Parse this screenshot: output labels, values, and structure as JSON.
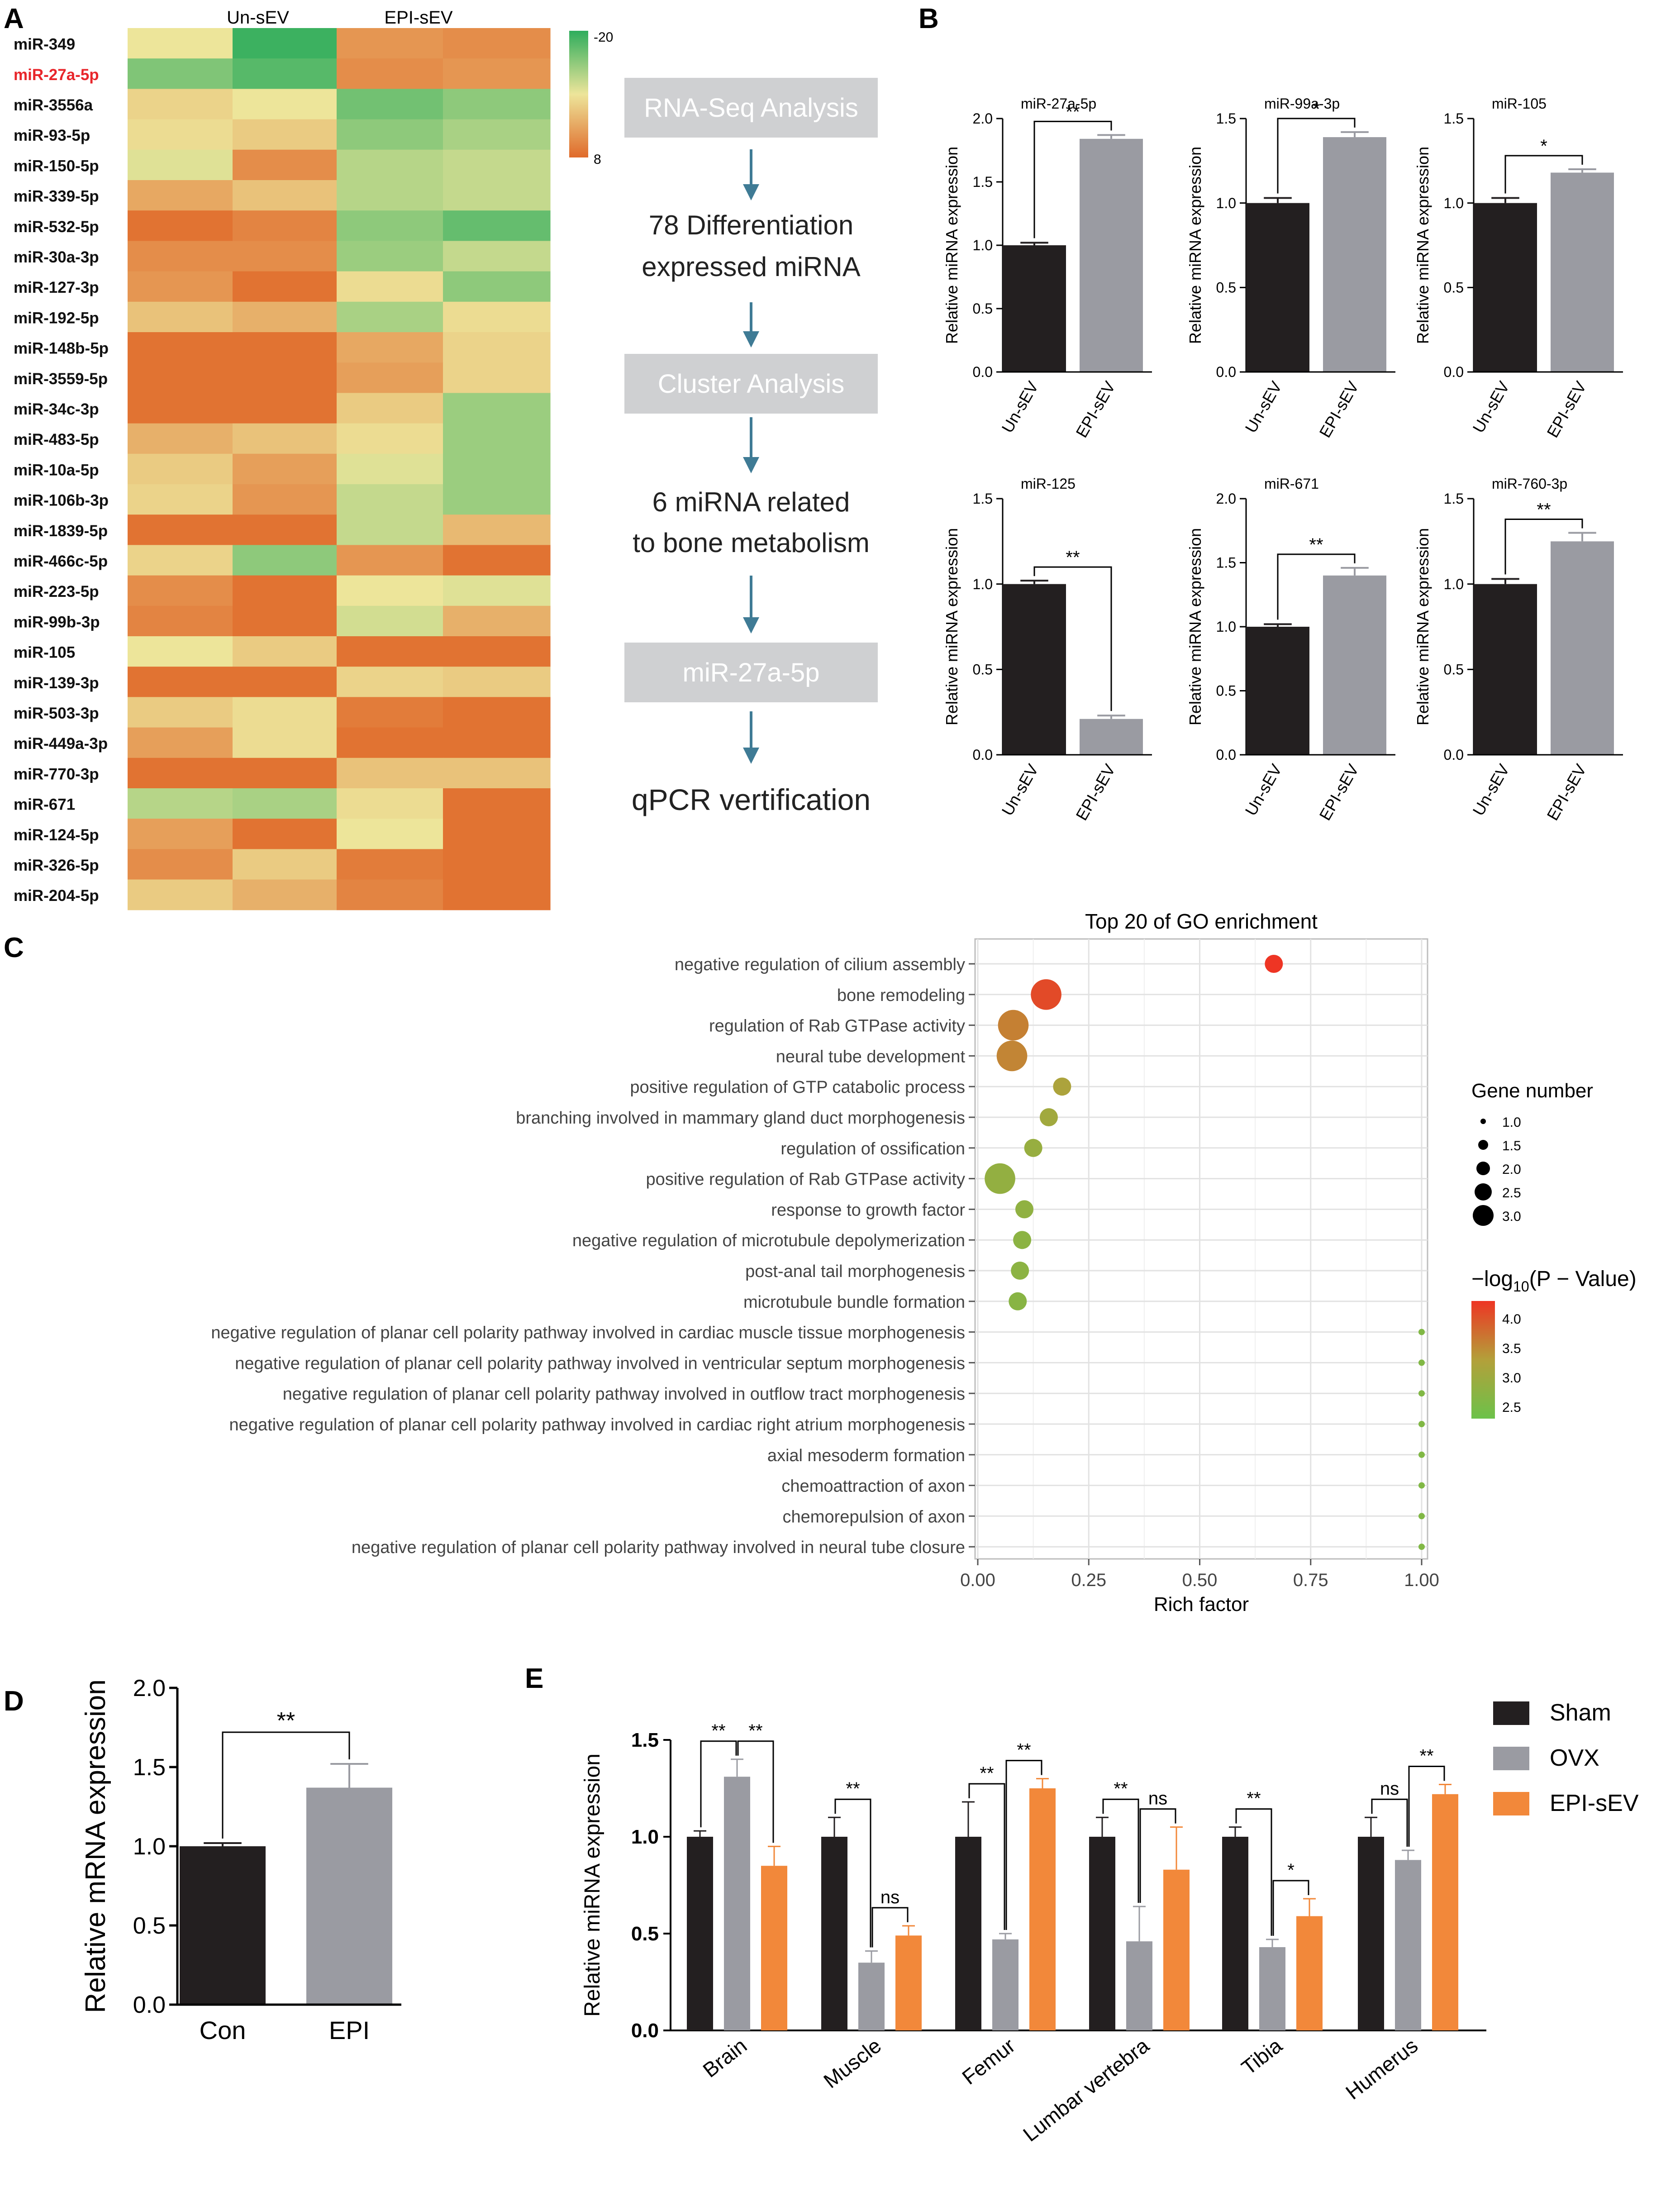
{
  "panel_labels": {
    "a": "A",
    "b": "B",
    "c": "C",
    "d": "D",
    "e": "E"
  },
  "heatmap": {
    "columns": [
      "Un-sEV",
      "EPI-sEV"
    ],
    "colorbar": {
      "top_label": "-20",
      "bottom_label": "8",
      "min": -20,
      "max": 8,
      "colors": [
        "#2ead5c",
        "#ede59a",
        "#e06a2a"
      ]
    },
    "highlight_color": "#e8262b",
    "highlight_row": "miR-27a-5p",
    "rows": [
      {
        "name": "miR-349",
        "values": [
          -6,
          -19,
          3,
          4
        ]
      },
      {
        "name": "miR-27a-5p",
        "values": [
          -14,
          -17,
          4,
          3
        ]
      },
      {
        "name": "miR-3556a",
        "values": [
          -4,
          -6,
          -15,
          -13
        ]
      },
      {
        "name": "miR-93-5p",
        "values": [
          -5,
          -3,
          -13,
          -11
        ]
      },
      {
        "name": "miR-150-5p",
        "values": [
          -7,
          4,
          -10,
          -9
        ]
      },
      {
        "name": "miR-339-5p",
        "values": [
          1,
          -2,
          -10,
          -9
        ]
      },
      {
        "name": "miR-532-5p",
        "values": [
          7,
          5,
          -13,
          -16
        ]
      },
      {
        "name": "miR-30a-3p",
        "values": [
          4,
          4,
          -12,
          -9
        ]
      },
      {
        "name": "miR-127-3p",
        "values": [
          3,
          7,
          -5,
          -13
        ]
      },
      {
        "name": "miR-192-5p",
        "values": [
          -2,
          0,
          -11,
          -5
        ]
      },
      {
        "name": "miR-148b-5p",
        "values": [
          7,
          7,
          1,
          -4
        ]
      },
      {
        "name": "miR-3559-5p",
        "values": [
          7,
          7,
          2,
          -4
        ]
      },
      {
        "name": "miR-34c-3p",
        "values": [
          7,
          7,
          -3,
          -12
        ]
      },
      {
        "name": "miR-483-5p",
        "values": [
          0,
          -2,
          -5,
          -12
        ]
      },
      {
        "name": "miR-10a-5p",
        "values": [
          -3,
          2,
          -7,
          -12
        ]
      },
      {
        "name": "miR-106b-3p",
        "values": [
          -4,
          3,
          -9,
          -12
        ]
      },
      {
        "name": "miR-1839-5p",
        "values": [
          7,
          7,
          -9,
          -1
        ]
      },
      {
        "name": "miR-466c-5p",
        "values": [
          -4,
          -13,
          3,
          7
        ]
      },
      {
        "name": "miR-223-5p",
        "values": [
          4,
          7,
          -6,
          -7
        ]
      },
      {
        "name": "miR-99b-3p",
        "values": [
          5,
          7,
          -8,
          0
        ]
      },
      {
        "name": "miR-105",
        "values": [
          -6,
          -3,
          7,
          7
        ]
      },
      {
        "name": "miR-139-3p",
        "values": [
          7,
          7,
          -4,
          -3
        ]
      },
      {
        "name": "miR-503-3p",
        "values": [
          -3,
          -5,
          6,
          7
        ]
      },
      {
        "name": "miR-449a-3p",
        "values": [
          2,
          -5,
          7,
          7
        ]
      },
      {
        "name": "miR-770-3p",
        "values": [
          7,
          7,
          -2,
          -2
        ]
      },
      {
        "name": "miR-671",
        "values": [
          -10,
          -11,
          -5,
          7
        ]
      },
      {
        "name": "miR-124-5p",
        "values": [
          2,
          7,
          -6,
          7
        ]
      },
      {
        "name": "miR-326-5p",
        "values": [
          4,
          -3,
          6,
          7
        ]
      },
      {
        "name": "miR-204-5p",
        "values": [
          -3,
          0,
          5,
          7
        ]
      }
    ]
  },
  "flow": {
    "steps": [
      "RNA-Seq Analysis",
      "78 Differentiation",
      "expressed miRNA",
      "Cluster Analysis",
      "6 miRNA related",
      "to bone metabolism",
      "miR-27a-5p",
      "qPCR vertification"
    ]
  },
  "chart_data": [
    {
      "type": "bar",
      "panel": "B",
      "title": "miR-27a-5p",
      "categories": [
        "Un-sEV",
        "EPI-sEV"
      ],
      "values": [
        1.0,
        1.84
      ],
      "errors": [
        0.02,
        0.03
      ],
      "ylabel": "Relative miRNA expression",
      "ylim": [
        0,
        2.0
      ],
      "yticks": [
        "0.0",
        "0.5",
        "1.0",
        "1.5",
        "2.0"
      ],
      "significance": "**"
    },
    {
      "type": "bar",
      "panel": "B",
      "title": "miR-99a-3p",
      "categories": [
        "Un-sEV",
        "EPI-sEV"
      ],
      "values": [
        1.0,
        1.39
      ],
      "errors": [
        0.03,
        0.03
      ],
      "ylabel": "Relative miRNA expression",
      "ylim": [
        0,
        1.5
      ],
      "yticks": [
        "0.0",
        "0.5",
        "1.0",
        "1.5"
      ],
      "significance": "*"
    },
    {
      "type": "bar",
      "panel": "B",
      "title": "miR-105",
      "categories": [
        "Un-sEV",
        "EPI-sEV"
      ],
      "values": [
        1.0,
        1.18
      ],
      "errors": [
        0.03,
        0.02
      ],
      "ylabel": "Relative miRNA expression",
      "ylim": [
        0,
        1.5
      ],
      "yticks": [
        "0.0",
        "0.5",
        "1.0",
        "1.5"
      ],
      "significance": "*"
    },
    {
      "type": "bar",
      "panel": "B",
      "title": "miR-125",
      "categories": [
        "Un-sEV",
        "EPI-sEV"
      ],
      "values": [
        1.0,
        0.21
      ],
      "errors": [
        0.02,
        0.02
      ],
      "ylabel": "Relative miRNA expression",
      "ylim": [
        0,
        1.5
      ],
      "yticks": [
        "0.0",
        "0.5",
        "1.0",
        "1.5"
      ],
      "significance": "**"
    },
    {
      "type": "bar",
      "panel": "B",
      "title": "miR-671",
      "categories": [
        "Un-sEV",
        "EPI-sEV"
      ],
      "values": [
        1.0,
        1.4
      ],
      "errors": [
        0.02,
        0.06
      ],
      "ylabel": "Relative miRNA expression",
      "ylim": [
        0,
        2.0
      ],
      "yticks": [
        "0.0",
        "0.5",
        "1.0",
        "1.5",
        "2.0"
      ],
      "significance": "**"
    },
    {
      "type": "bar",
      "panel": "B",
      "title": "miR-760-3p",
      "categories": [
        "Un-sEV",
        "EPI-sEV"
      ],
      "values": [
        1.0,
        1.25
      ],
      "errors": [
        0.03,
        0.05
      ],
      "ylabel": "Relative miRNA expression",
      "ylim": [
        0,
        1.5
      ],
      "yticks": [
        "0.0",
        "0.5",
        "1.0",
        "1.5"
      ],
      "significance": "**"
    },
    {
      "type": "scatter",
      "panel": "C",
      "title": "Top 20 of GO enrichment",
      "xlabel": "Rich factor",
      "xlim": [
        0,
        1.05
      ],
      "xticks": [
        "0.00",
        "0.25",
        "0.50",
        "0.75",
        "1.00"
      ],
      "size_legend": {
        "title": "Gene number",
        "values": [
          "1.0",
          "1.5",
          "2.0",
          "2.5",
          "3.0"
        ]
      },
      "color_legend": {
        "title_main": "−log",
        "title_sub": "10",
        "title_rest": "(P − Value)",
        "ticks": [
          "4.0",
          "3.5",
          "3.0",
          "2.5"
        ],
        "range": [
          2.3,
          4.3
        ]
      },
      "terms": [
        {
          "term": "negative regulation of cilium assembly",
          "rich": 0.667,
          "genes": 1,
          "neglog10p": 4.3
        },
        {
          "term": "bone remodeling",
          "rich": 0.154,
          "genes": 2,
          "neglog10p": 4.1
        },
        {
          "term": "regulation of Rab GTPase activity",
          "rich": 0.08,
          "genes": 2,
          "neglog10p": 3.6
        },
        {
          "term": "neural tube development",
          "rich": 0.077,
          "genes": 2,
          "neglog10p": 3.55
        },
        {
          "term": "positive regulation of GTP catabolic process",
          "rich": 0.19,
          "genes": 1,
          "neglog10p": 3.2
        },
        {
          "term": "branching involved in mammary gland duct morphogenesis",
          "rich": 0.16,
          "genes": 1,
          "neglog10p": 3.05
        },
        {
          "term": "regulation of ossification",
          "rich": 0.125,
          "genes": 1,
          "neglog10p": 2.9
        },
        {
          "term": "positive regulation of Rab GTPase activity",
          "rich": 0.05,
          "genes": 2,
          "neglog10p": 2.85
        },
        {
          "term": "response to growth factor",
          "rich": 0.105,
          "genes": 1,
          "neglog10p": 2.8
        },
        {
          "term": "negative regulation of microtubule depolymerization",
          "rich": 0.1,
          "genes": 1,
          "neglog10p": 2.75
        },
        {
          "term": "post-anal tail morphogenesis",
          "rich": 0.095,
          "genes": 1,
          "neglog10p": 2.75
        },
        {
          "term": "microtubule bundle formation",
          "rich": 0.09,
          "genes": 1,
          "neglog10p": 2.7
        },
        {
          "term": "negative regulation of planar cell polarity pathway involved in cardiac muscle tissue morphogenesis",
          "rich": 1.0,
          "genes": 0.5,
          "neglog10p": 2.6
        },
        {
          "term": "negative regulation of planar cell polarity pathway involved in ventricular septum morphogenesis",
          "rich": 1.0,
          "genes": 0.5,
          "neglog10p": 2.6
        },
        {
          "term": "negative regulation of planar cell polarity pathway involved in outflow tract morphogenesis",
          "rich": 1.0,
          "genes": 0.5,
          "neglog10p": 2.6
        },
        {
          "term": "negative regulation of planar cell polarity pathway involved in cardiac right atrium morphogenesis",
          "rich": 1.0,
          "genes": 0.5,
          "neglog10p": 2.6
        },
        {
          "term": "axial mesoderm formation",
          "rich": 1.0,
          "genes": 0.5,
          "neglog10p": 2.6
        },
        {
          "term": "chemoattraction of axon",
          "rich": 1.0,
          "genes": 0.5,
          "neglog10p": 2.6
        },
        {
          "term": "chemorepulsion of axon",
          "rich": 1.0,
          "genes": 0.5,
          "neglog10p": 2.6
        },
        {
          "term": "negative regulation of planar cell polarity pathway involved in neural tube closure",
          "rich": 1.0,
          "genes": 0.5,
          "neglog10p": 2.6
        }
      ]
    },
    {
      "type": "bar",
      "panel": "D",
      "categories": [
        "Con",
        "EPI"
      ],
      "values": [
        1.0,
        1.37
      ],
      "errors": [
        0.02,
        0.15
      ],
      "ylabel": "Relative mRNA expression",
      "ylim": [
        0,
        2.0
      ],
      "yticks": [
        "0.0",
        "0.5",
        "1.0",
        "1.5",
        "2.0"
      ],
      "significance": "**"
    },
    {
      "type": "bar",
      "panel": "E",
      "ylabel": "Relative miRNA expression",
      "ylim": [
        0,
        1.5
      ],
      "yticks": [
        "0.0",
        "0.5",
        "1.0",
        "1.5"
      ],
      "categories": [
        "Brain",
        "Muscle",
        "Femur",
        "Lumbar vertebra",
        "Tibia",
        "Humerus"
      ],
      "series": [
        {
          "name": "Sham",
          "color": "#231f20",
          "values": [
            1.0,
            1.0,
            1.0,
            1.0,
            1.0,
            1.0
          ],
          "errors": [
            0.03,
            0.1,
            0.18,
            0.1,
            0.05,
            0.1
          ]
        },
        {
          "name": "OVX",
          "color": "#9a9ba2",
          "values": [
            1.31,
            0.35,
            0.47,
            0.46,
            0.43,
            0.88
          ],
          "errors": [
            0.09,
            0.06,
            0.03,
            0.18,
            0.04,
            0.05
          ]
        },
        {
          "name": "EPI-sEV",
          "color": "#f2883a",
          "values": [
            0.85,
            0.49,
            1.25,
            0.83,
            0.59,
            1.22
          ],
          "errors": [
            0.1,
            0.05,
            0.05,
            0.22,
            0.09,
            0.05
          ]
        }
      ],
      "comparisons": [
        {
          "cat": 0,
          "a": 0,
          "b": 1,
          "label": "**"
        },
        {
          "cat": 0,
          "a": 1,
          "b": 2,
          "label": "**"
        },
        {
          "cat": 1,
          "a": 0,
          "b": 1,
          "label": "**"
        },
        {
          "cat": 1,
          "a": 1,
          "b": 2,
          "label": "ns"
        },
        {
          "cat": 2,
          "a": 0,
          "b": 1,
          "label": "**"
        },
        {
          "cat": 2,
          "a": 1,
          "b": 2,
          "label": "**"
        },
        {
          "cat": 3,
          "a": 0,
          "b": 1,
          "label": "**"
        },
        {
          "cat": 3,
          "a": 1,
          "b": 2,
          "label": "ns"
        },
        {
          "cat": 4,
          "a": 0,
          "b": 1,
          "label": "**"
        },
        {
          "cat": 4,
          "a": 1,
          "b": 2,
          "label": "*"
        },
        {
          "cat": 5,
          "a": 0,
          "b": 1,
          "label": "ns"
        },
        {
          "cat": 5,
          "a": 1,
          "b": 2,
          "label": "**"
        }
      ]
    }
  ]
}
